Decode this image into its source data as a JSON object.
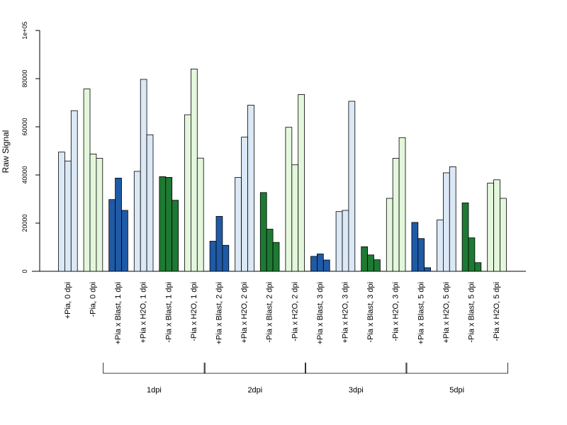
{
  "chart_data": {
    "type": "bar",
    "title": "",
    "ylabel": "Raw Signal",
    "xlabel": "",
    "ylim": [
      0,
      100000
    ],
    "yticks": [
      {
        "value": 0,
        "label": "0"
      },
      {
        "value": 20000,
        "label": "20000"
      },
      {
        "value": 40000,
        "label": "40000"
      },
      {
        "value": 60000,
        "label": "60000"
      },
      {
        "value": 80000,
        "label": "80000"
      },
      {
        "value": 100000,
        "label": "1e+05"
      }
    ],
    "colors": {
      "light_blue": "#dbe8f6",
      "light_green": "#e3f7dc",
      "dark_blue": "#1f5aa6",
      "dark_green": "#1e7a33"
    },
    "categories": [
      {
        "label": "+Pia, 0 dpi",
        "color": "light_blue",
        "values": [
          49500,
          45800,
          66700
        ]
      },
      {
        "label": "-Pia, 0 dpi",
        "color": "light_green",
        "values": [
          75700,
          48700,
          46900
        ]
      },
      {
        "label": "+Pia x Blast, 1 dpi",
        "color": "dark_blue",
        "values": [
          29800,
          38700,
          25300
        ]
      },
      {
        "label": "+Pia x H2O, 1 dpi",
        "color": "light_blue",
        "values": [
          41500,
          79700,
          56700
        ]
      },
      {
        "label": "-Pia x Blast, 1 dpi",
        "color": "dark_green",
        "values": [
          39300,
          39000,
          29500
        ]
      },
      {
        "label": "-Pia x H2O, 1 dpi",
        "color": "light_green",
        "values": [
          65000,
          84000,
          47000
        ]
      },
      {
        "label": "+Pia x Blast, 2 dpi",
        "color": "dark_blue",
        "values": [
          12500,
          22800,
          10800
        ]
      },
      {
        "label": "+Pia x H2O, 2 dpi",
        "color": "light_blue",
        "values": [
          39000,
          55700,
          69000
        ]
      },
      {
        "label": "-Pia x Blast, 2 dpi",
        "color": "dark_green",
        "values": [
          32700,
          17500,
          12000
        ]
      },
      {
        "label": "-Pia x H2O, 2 dpi",
        "color": "light_green",
        "values": [
          59800,
          44200,
          73400
        ]
      },
      {
        "label": "+Pia x Blast, 3 dpi",
        "color": "dark_blue",
        "values": [
          6200,
          7200,
          4700
        ]
      },
      {
        "label": "+Pia x H2O, 3 dpi",
        "color": "light_blue",
        "values": [
          24800,
          25300,
          70600
        ]
      },
      {
        "label": "-Pia x Blast, 3 dpi",
        "color": "dark_green",
        "values": [
          10200,
          6800,
          4800
        ]
      },
      {
        "label": "-Pia x H2O, 3 dpi",
        "color": "light_green",
        "values": [
          30300,
          46900,
          55500
        ]
      },
      {
        "label": "+Pia x Blast, 5 dpi",
        "color": "dark_blue",
        "values": [
          20300,
          13600,
          1500
        ]
      },
      {
        "label": "+Pia x H2O, 5 dpi",
        "color": "light_blue",
        "values": [
          21300,
          40900,
          43400
        ]
      },
      {
        "label": "-Pia x Blast, 5 dpi",
        "color": "dark_green",
        "values": [
          28400,
          13900,
          3600
        ]
      },
      {
        "label": "-Pia x H2O, 5 dpi",
        "color": "light_green",
        "values": [
          36600,
          38000,
          30300
        ]
      }
    ],
    "groups": [
      {
        "label": "1dpi",
        "from": 2,
        "to": 5
      },
      {
        "label": "2dpi",
        "from": 6,
        "to": 9
      },
      {
        "label": "3dpi",
        "from": 10,
        "to": 13
      },
      {
        "label": "5dpi",
        "from": 14,
        "to": 17
      }
    ],
    "grid": false,
    "legend": "none"
  }
}
